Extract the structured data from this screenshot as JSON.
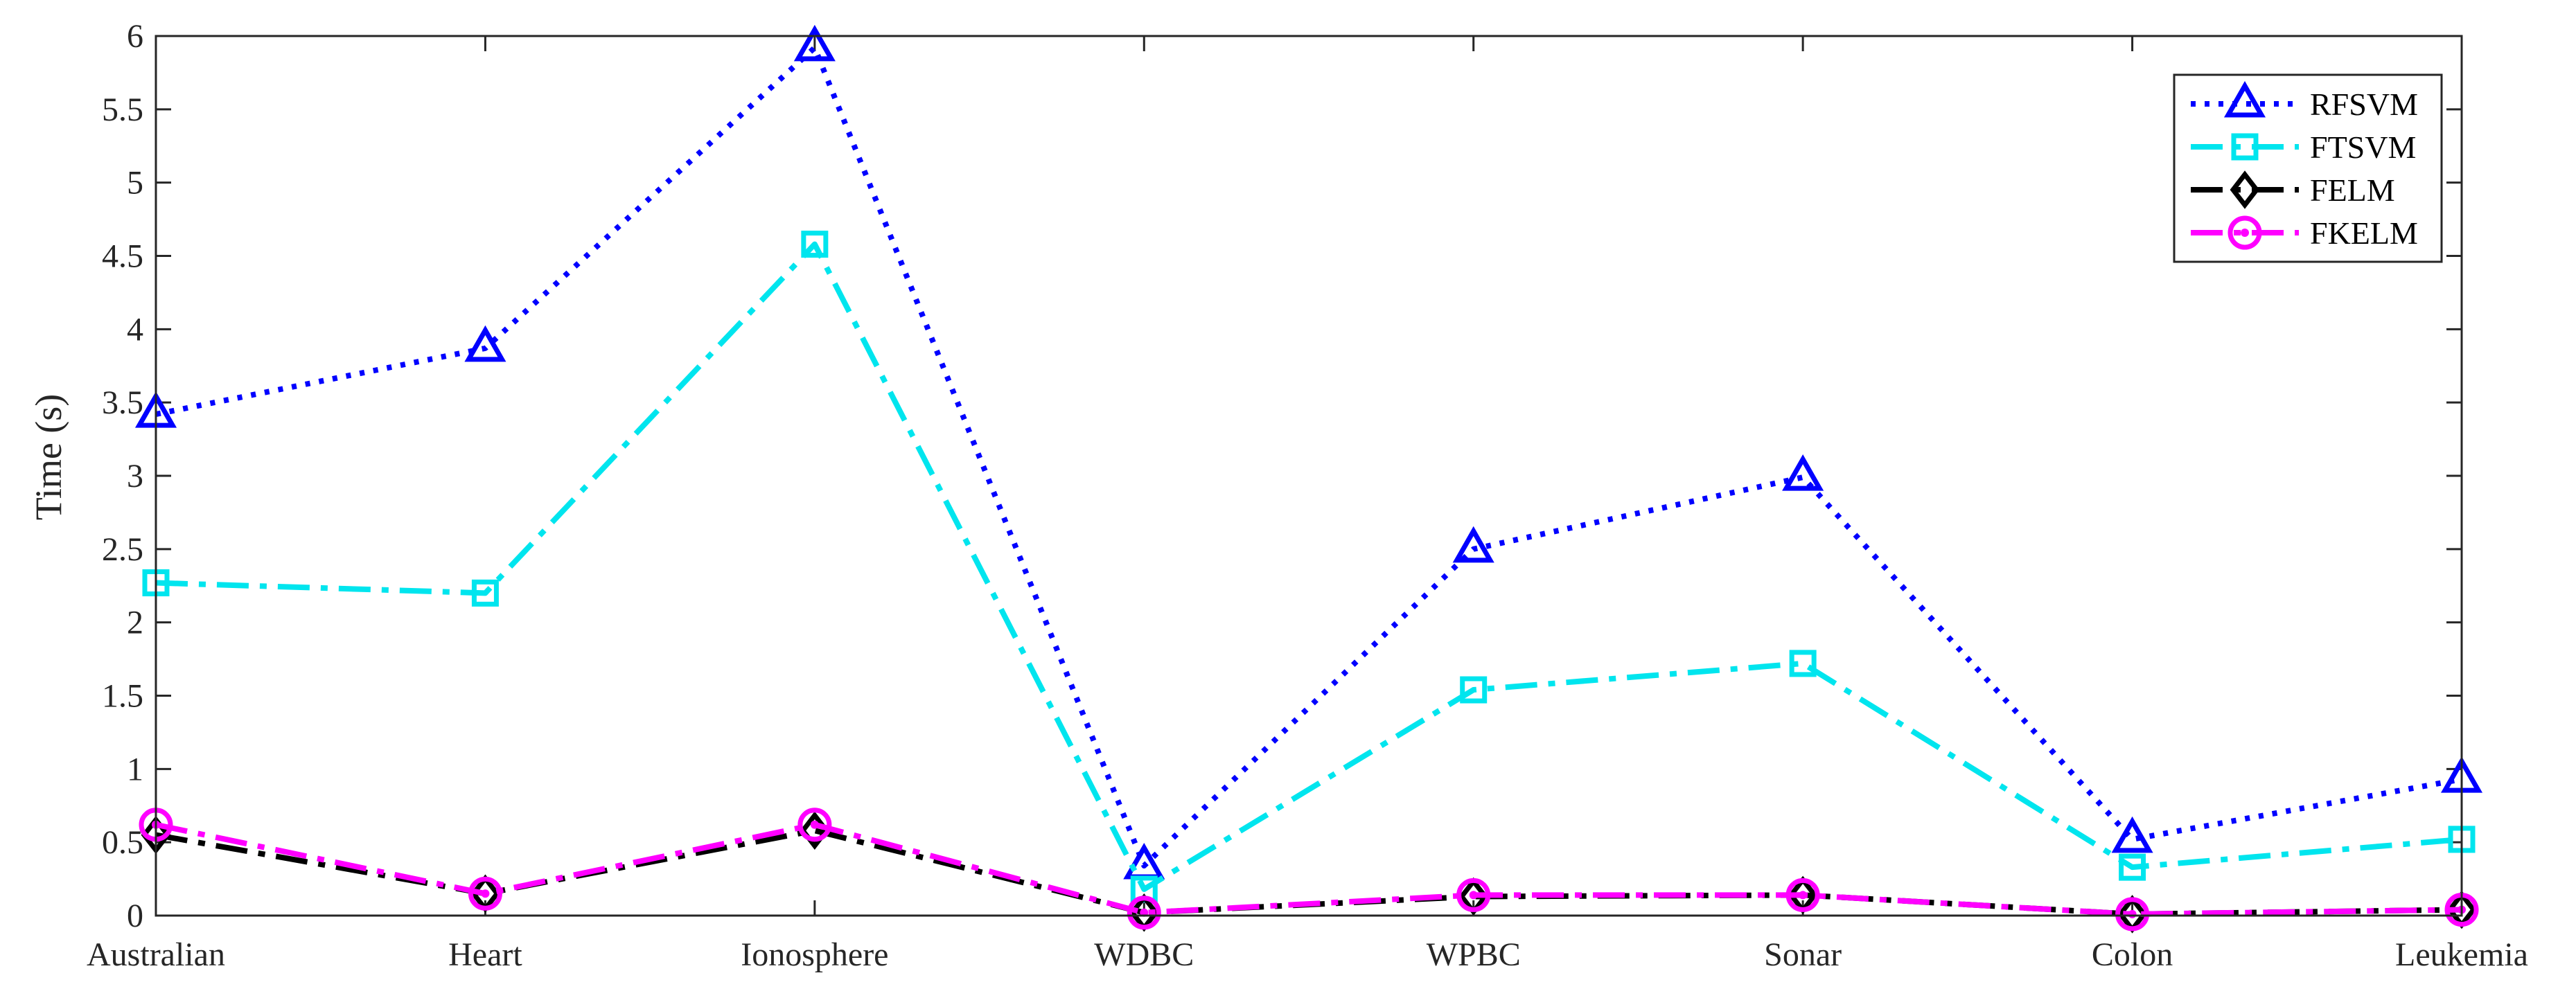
{
  "chart_data": {
    "type": "line",
    "title": "",
    "xlabel": "",
    "ylabel": "Time (s)",
    "categories": [
      "Australian",
      "Heart",
      "Ionosphere",
      "WDBC",
      "WPBC",
      "Sonar",
      "Colon",
      "Leukemia"
    ],
    "ylim": [
      0,
      6
    ],
    "yticks": [
      "0",
      "0.5",
      "1",
      "1.5",
      "2",
      "2.5",
      "3",
      "3.5",
      "4",
      "4.5",
      "5",
      "5.5",
      "6"
    ],
    "grid": false,
    "legend_position": "top-right",
    "series": [
      {
        "name": "RFSVM",
        "values": [
          3.42,
          3.87,
          5.92,
          0.34,
          2.5,
          2.99,
          0.52,
          0.93
        ],
        "color": "#0000ff",
        "marker": "triangle",
        "line_style": "dotted"
      },
      {
        "name": "FTSVM",
        "values": [
          2.27,
          2.2,
          4.58,
          0.18,
          1.54,
          1.72,
          0.33,
          0.52
        ],
        "color": "#00e5ee",
        "marker": "square",
        "line_style": "dashdot"
      },
      {
        "name": "FELM",
        "values": [
          0.55,
          0.15,
          0.58,
          0.02,
          0.13,
          0.14,
          0.01,
          0.04
        ],
        "color": "#000000",
        "marker": "diamond",
        "line_style": "dashdot"
      },
      {
        "name": "FKELM",
        "values": [
          0.62,
          0.15,
          0.62,
          0.02,
          0.14,
          0.14,
          0.01,
          0.04
        ],
        "color": "#ff00ff",
        "marker": "circle",
        "line_style": "dashdot"
      }
    ]
  }
}
